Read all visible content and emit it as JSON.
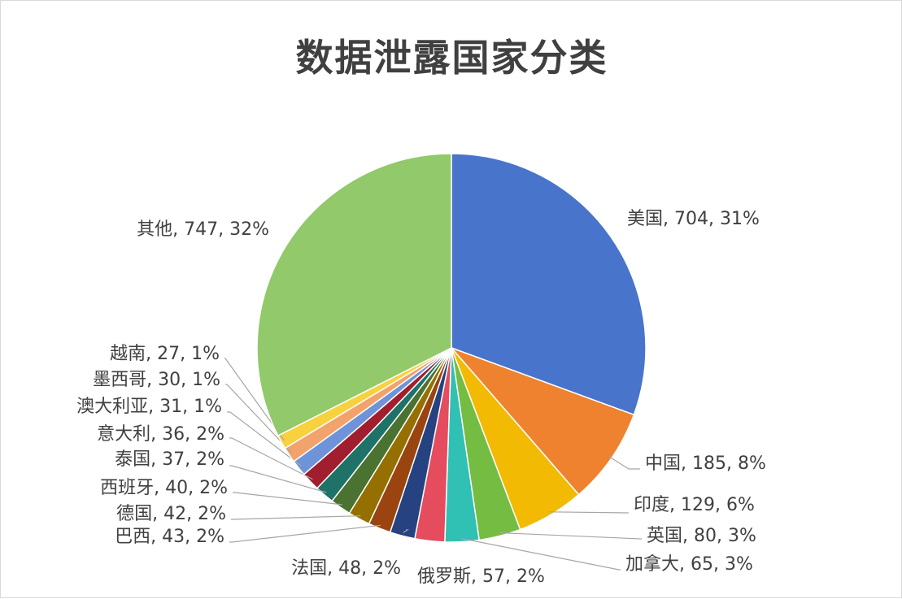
{
  "chart_data": {
    "type": "pie",
    "title": "数据泄露国家分类",
    "slices": [
      {
        "name": "美国",
        "value": 704,
        "percent": "31%",
        "color": "#4874CB"
      },
      {
        "name": "中国",
        "value": 185,
        "percent": "8%",
        "color": "#EE822F"
      },
      {
        "name": "印度",
        "value": 129,
        "percent": "6%",
        "color": "#F2BA02"
      },
      {
        "name": "英国",
        "value": 80,
        "percent": "3%",
        "color": "#75BD42"
      },
      {
        "name": "加拿大",
        "value": 65,
        "percent": "3%",
        "color": "#30C0B4"
      },
      {
        "name": "俄罗斯",
        "value": 57,
        "percent": "2%",
        "color": "#E54C5E"
      },
      {
        "name": "法国",
        "value": 48,
        "percent": "2%",
        "color": "#264281"
      },
      {
        "name": "巴西",
        "value": 43,
        "percent": "2%",
        "color": "#9A4510"
      },
      {
        "name": "德国",
        "value": 42,
        "percent": "2%",
        "color": "#957000"
      },
      {
        "name": "西班牙",
        "value": 40,
        "percent": "2%",
        "color": "#4A7230"
      },
      {
        "name": "泰国",
        "value": 37,
        "percent": "2%",
        "color": "#1E7268"
      },
      {
        "name": "意大利",
        "value": 36,
        "percent": "2%",
        "color": "#A01E2E"
      },
      {
        "name": "澳大利亚",
        "value": 31,
        "percent": "1%",
        "color": "#6F93D8"
      },
      {
        "name": "墨西哥",
        "value": 30,
        "percent": "1%",
        "color": "#F2A26B"
      },
      {
        "name": "越南",
        "value": 27,
        "percent": "1%",
        "color": "#F8D13F"
      },
      {
        "name": "其他",
        "value": 747,
        "percent": "32%",
        "color": "#91C96B"
      }
    ]
  }
}
